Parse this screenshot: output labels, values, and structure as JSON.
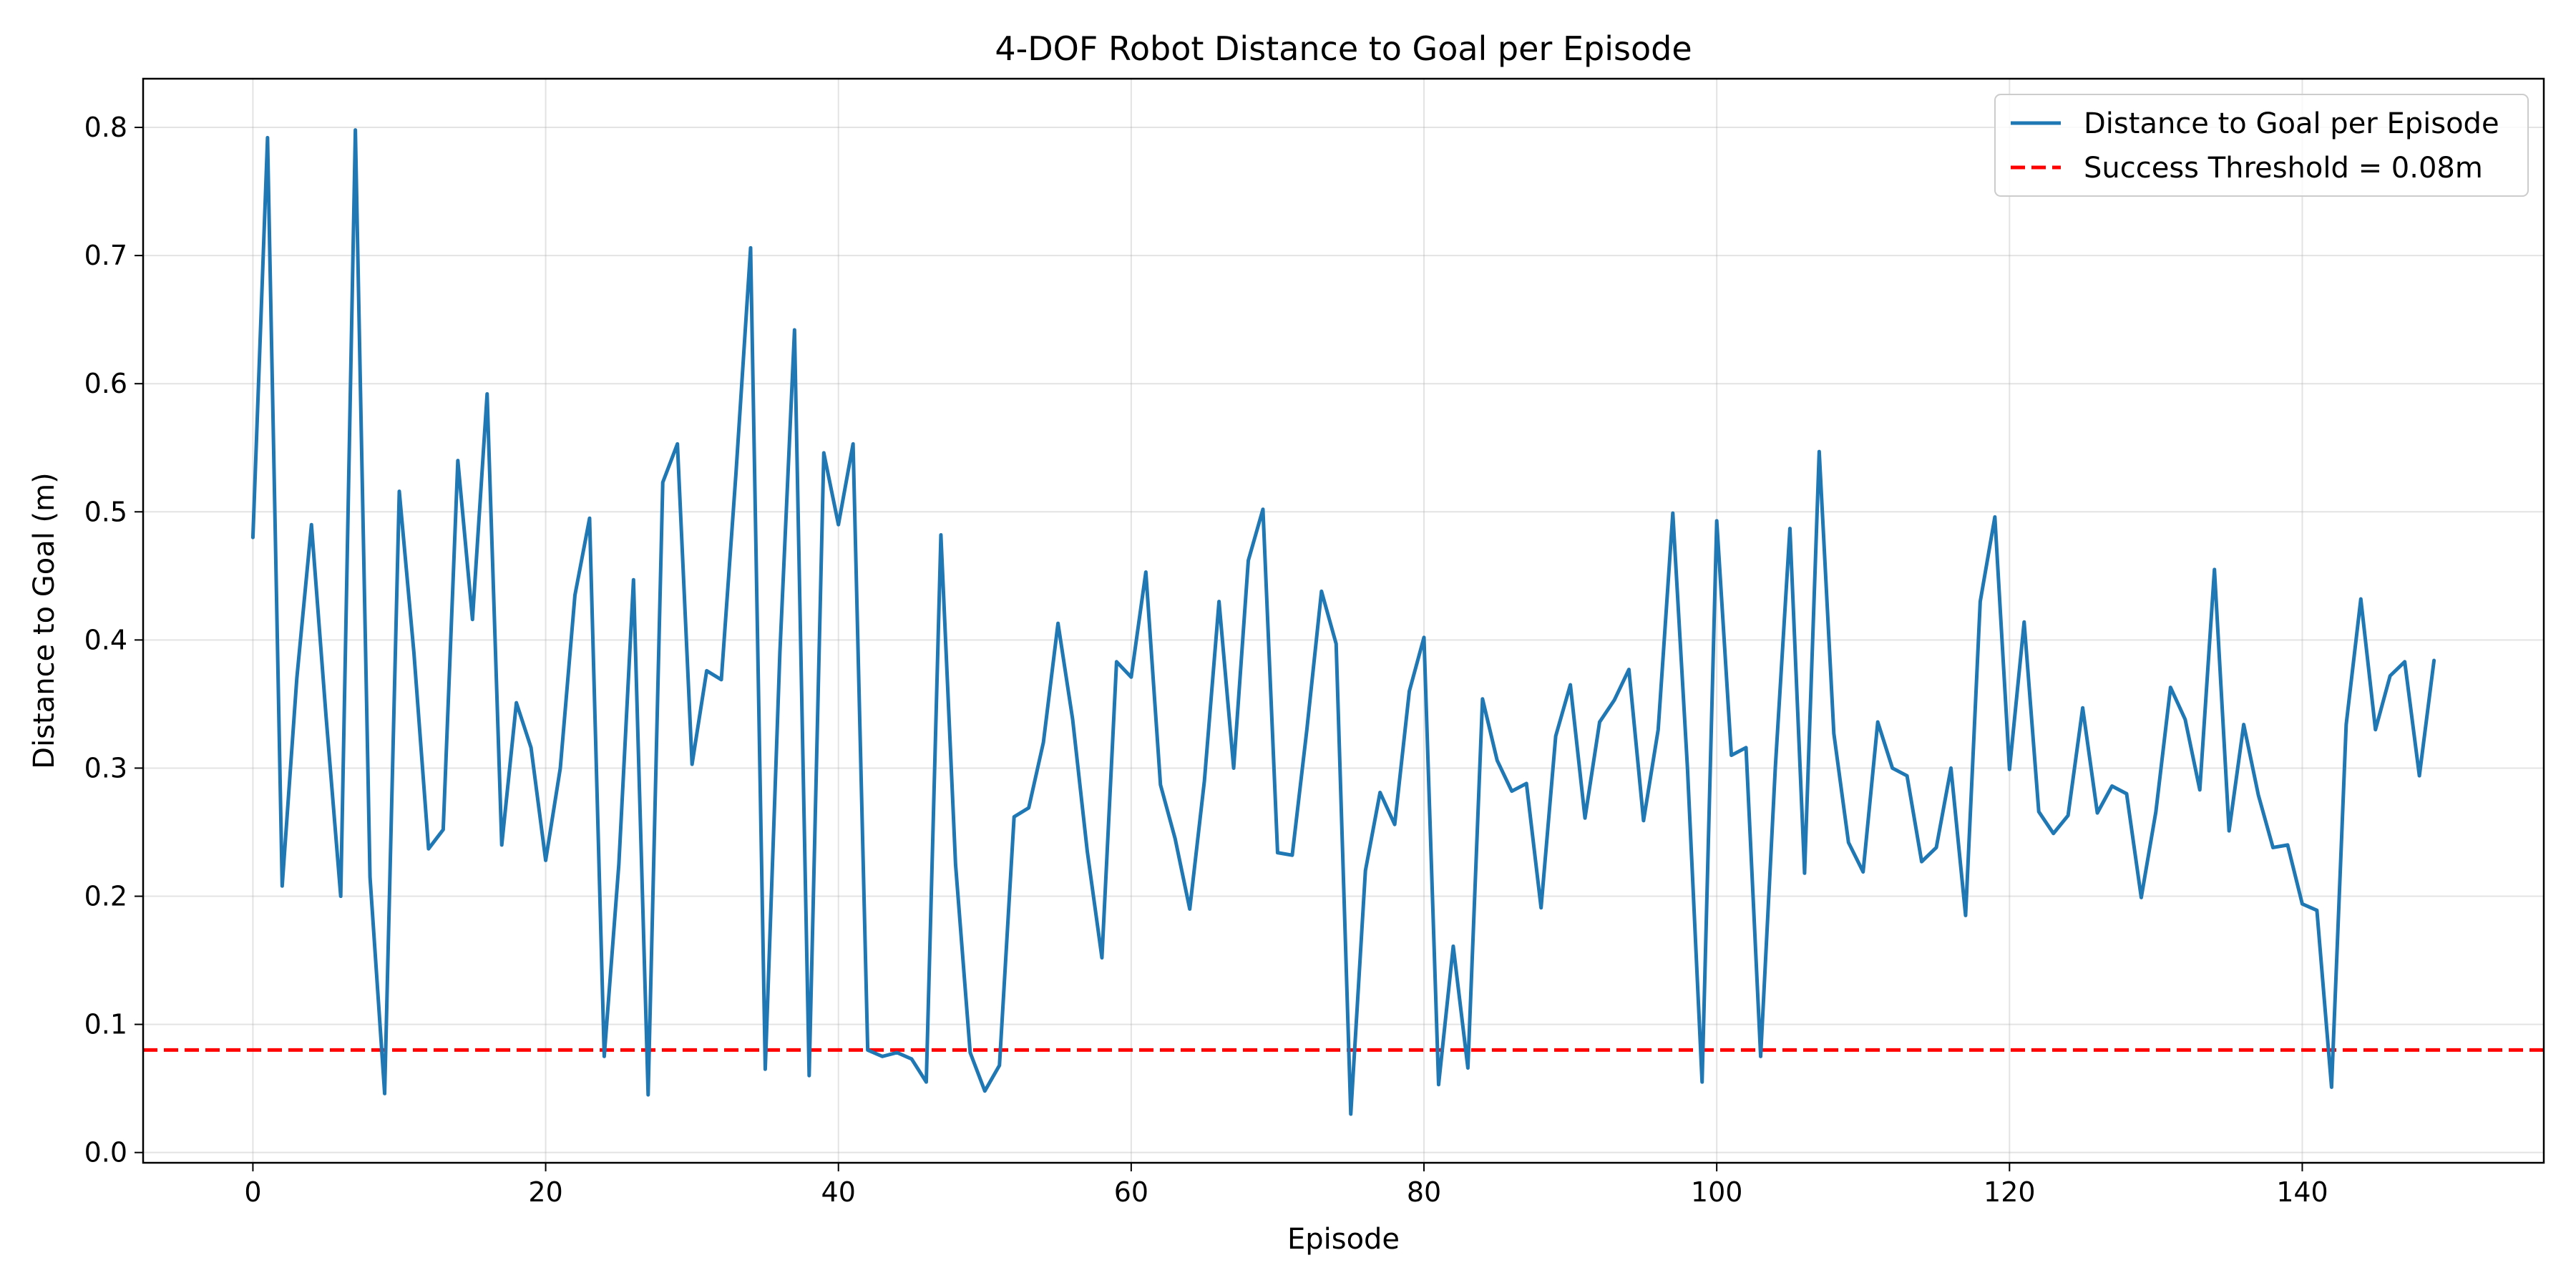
{
  "chart_data": {
    "type": "line",
    "title": "4-DOF Robot Distance to Goal per Episode",
    "xlabel": "Episode",
    "ylabel": "Distance to Goal (m)",
    "xlim": [
      -7.5,
      156.5
    ],
    "ylim": [
      -0.008,
      0.838
    ],
    "xticks": [
      0,
      20,
      40,
      60,
      80,
      100,
      120,
      140
    ],
    "yticks": [
      0.0,
      0.1,
      0.2,
      0.3,
      0.4,
      0.5,
      0.6,
      0.7,
      0.8
    ],
    "grid": true,
    "legend_position": "top-right",
    "series": [
      {
        "name": "Distance to Goal per Episode",
        "color": "#1f77b4",
        "style": "solid",
        "x": [
          0,
          1,
          2,
          3,
          4,
          5,
          6,
          7,
          8,
          9,
          10,
          11,
          12,
          13,
          14,
          15,
          16,
          17,
          18,
          19,
          20,
          21,
          22,
          23,
          24,
          25,
          26,
          27,
          28,
          29,
          30,
          31,
          32,
          33,
          34,
          35,
          36,
          37,
          38,
          39,
          40,
          41,
          42,
          43,
          44,
          45,
          46,
          47,
          48,
          49,
          50,
          51,
          52,
          53,
          54,
          55,
          56,
          57,
          58,
          59,
          60,
          61,
          62,
          63,
          64,
          65,
          66,
          67,
          68,
          69,
          70,
          71,
          72,
          73,
          74,
          75,
          76,
          77,
          78,
          79,
          80,
          81,
          82,
          83,
          84,
          85,
          86,
          87,
          88,
          89,
          90,
          91,
          92,
          93,
          94,
          95,
          96,
          97,
          98,
          99,
          100,
          101,
          102,
          103,
          104,
          105,
          106,
          107,
          108,
          109,
          110,
          111,
          112,
          113,
          114,
          115,
          116,
          117,
          118,
          119,
          120,
          121,
          122,
          123,
          124,
          125,
          126,
          127,
          128,
          129,
          130,
          131,
          132,
          133,
          134,
          135,
          136,
          137,
          138,
          139,
          140,
          141,
          142,
          143,
          144,
          145,
          146,
          147,
          148,
          149
        ],
        "values": [
          0.48,
          0.792,
          0.208,
          0.37,
          0.49,
          0.34,
          0.2,
          0.798,
          0.215,
          0.046,
          0.516,
          0.39,
          0.237,
          0.252,
          0.54,
          0.416,
          0.592,
          0.24,
          0.351,
          0.316,
          0.228,
          0.3,
          0.435,
          0.495,
          0.075,
          0.225,
          0.447,
          0.045,
          0.523,
          0.553,
          0.303,
          0.376,
          0.369,
          0.53,
          0.706,
          0.065,
          0.39,
          0.642,
          0.06,
          0.546,
          0.49,
          0.553,
          0.08,
          0.075,
          0.078,
          0.073,
          0.055,
          0.482,
          0.225,
          0.078,
          0.048,
          0.068,
          0.262,
          0.269,
          0.32,
          0.413,
          0.338,
          0.235,
          0.152,
          0.383,
          0.371,
          0.453,
          0.287,
          0.245,
          0.19,
          0.29,
          0.43,
          0.3,
          0.462,
          0.502,
          0.234,
          0.232,
          0.33,
          0.438,
          0.397,
          0.03,
          0.22,
          0.281,
          0.256,
          0.36,
          0.402,
          0.053,
          0.161,
          0.066,
          0.354,
          0.306,
          0.282,
          0.288,
          0.191,
          0.325,
          0.365,
          0.261,
          0.336,
          0.353,
          0.377,
          0.259,
          0.33,
          0.499,
          0.3,
          0.055,
          0.493,
          0.31,
          0.316,
          0.075,
          0.3,
          0.487,
          0.218,
          0.547,
          0.327,
          0.242,
          0.219,
          0.336,
          0.3,
          0.294,
          0.227,
          0.238,
          0.3,
          0.185,
          0.43,
          0.496,
          0.299,
          0.414,
          0.266,
          0.249,
          0.263,
          0.347,
          0.265,
          0.286,
          0.28,
          0.199,
          0.266,
          0.363,
          0.338,
          0.283,
          0.455,
          0.251,
          0.334,
          0.279,
          0.238,
          0.24,
          0.194,
          0.189,
          0.051,
          0.334,
          0.432,
          0.33,
          0.372,
          0.383,
          0.294,
          0.384
        ]
      },
      {
        "name": "Success Threshold = 0.08m",
        "color": "#ff0000",
        "style": "dashed",
        "hline": 0.08
      }
    ]
  }
}
